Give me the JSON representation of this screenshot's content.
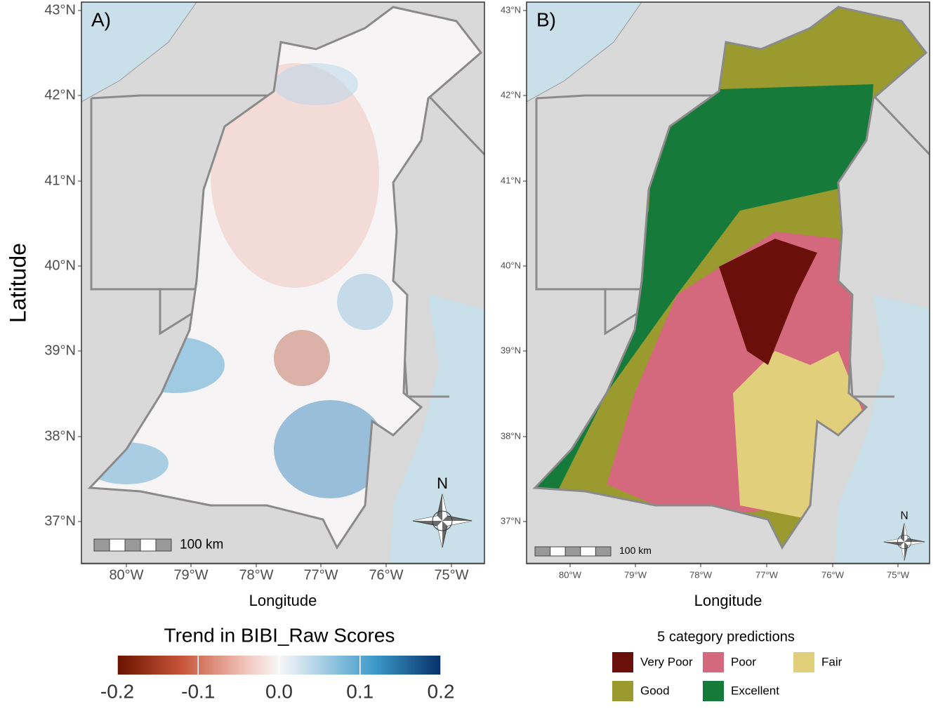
{
  "y_axis_label": "Latitude",
  "panels": [
    {
      "label": "A)",
      "x_axis_label": "Longitude",
      "x_ticks": [
        "80°W",
        "79°W",
        "78°W",
        "77°W",
        "76°W",
        "75°W"
      ],
      "y_ticks": [
        "43°N",
        "42°N",
        "41°N",
        "40°N",
        "39°N",
        "38°N",
        "37°N"
      ],
      "scale_bar": "100 km",
      "north": "N"
    },
    {
      "label": "B)",
      "x_axis_label": "Longitude",
      "x_ticks": [
        "80°W",
        "79°W",
        "78°W",
        "77°W",
        "76°W",
        "75°W"
      ],
      "y_ticks": [
        "43°N",
        "42°N",
        "41°N",
        "40°N",
        "39°N",
        "38°N",
        "37°N"
      ],
      "scale_bar": "100 km",
      "north": "N"
    }
  ],
  "legend_a": {
    "title": "Trend in BIBI_Raw Scores",
    "lim": [
      -0.2,
      0.2
    ],
    "ticks": [
      -0.2,
      -0.1,
      {
        "value": 0,
        "label": "0.0"
      },
      0.1,
      0.2
    ]
  },
  "legend_b": {
    "title": "5 category predictions",
    "items": [
      {
        "label": "Very Poor",
        "color": "#6b0f0a"
      },
      {
        "label": "Poor",
        "color": "#d4687c"
      },
      {
        "label": "Fair",
        "color": "#e2cf7c"
      },
      {
        "label": "Good",
        "color": "#9a9a2e"
      },
      {
        "label": "Excellent",
        "color": "#167a3a"
      }
    ]
  }
}
